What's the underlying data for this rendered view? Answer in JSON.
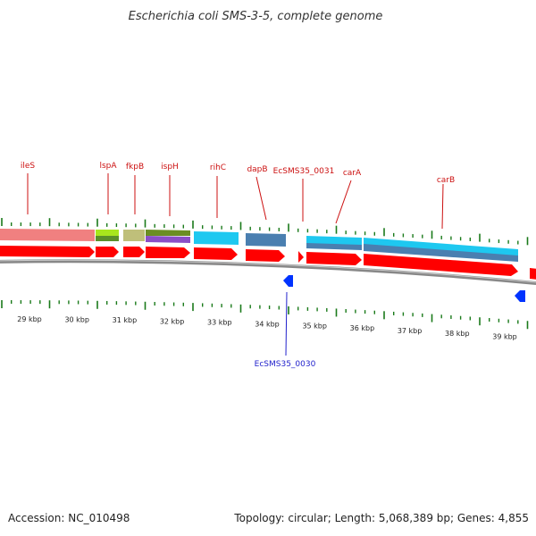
{
  "header": {
    "title": "Escherichia coli SMS-3-5, complete genome"
  },
  "footer": {
    "accession": "Accession: NC_010498",
    "summary": "Topology: circular; Length: 5,068,389 bp; Genes: 4,855"
  },
  "colors": {
    "cds_red": "#ff0000",
    "backbone_gray": "#888888",
    "tick_green": "#1a7a1a",
    "label_red": "#cc1111",
    "label_blue": "#2222cc",
    "reverse_blue": "#0033ff"
  },
  "scale": {
    "labels": [
      "29 kbp",
      "30 kbp",
      "31 kbp",
      "32 kbp",
      "33 kbp",
      "34 kbp",
      "35 kbp",
      "36 kbp",
      "37 kbp",
      "38 kbp",
      "39 kbp"
    ]
  },
  "gene_labels": [
    {
      "name": "ileS",
      "strand": "forward"
    },
    {
      "name": "lspA",
      "strand": "forward"
    },
    {
      "name": "fkpB",
      "strand": "forward"
    },
    {
      "name": "ispH",
      "strand": "forward"
    },
    {
      "name": "rihC",
      "strand": "forward"
    },
    {
      "name": "dapB",
      "strand": "forward"
    },
    {
      "name": "EcSMS35_0031",
      "strand": "forward"
    },
    {
      "name": "carA",
      "strand": "forward"
    },
    {
      "name": "carB",
      "strand": "forward"
    },
    {
      "name": "EcSMS35_0030",
      "strand": "reverse"
    }
  ]
}
